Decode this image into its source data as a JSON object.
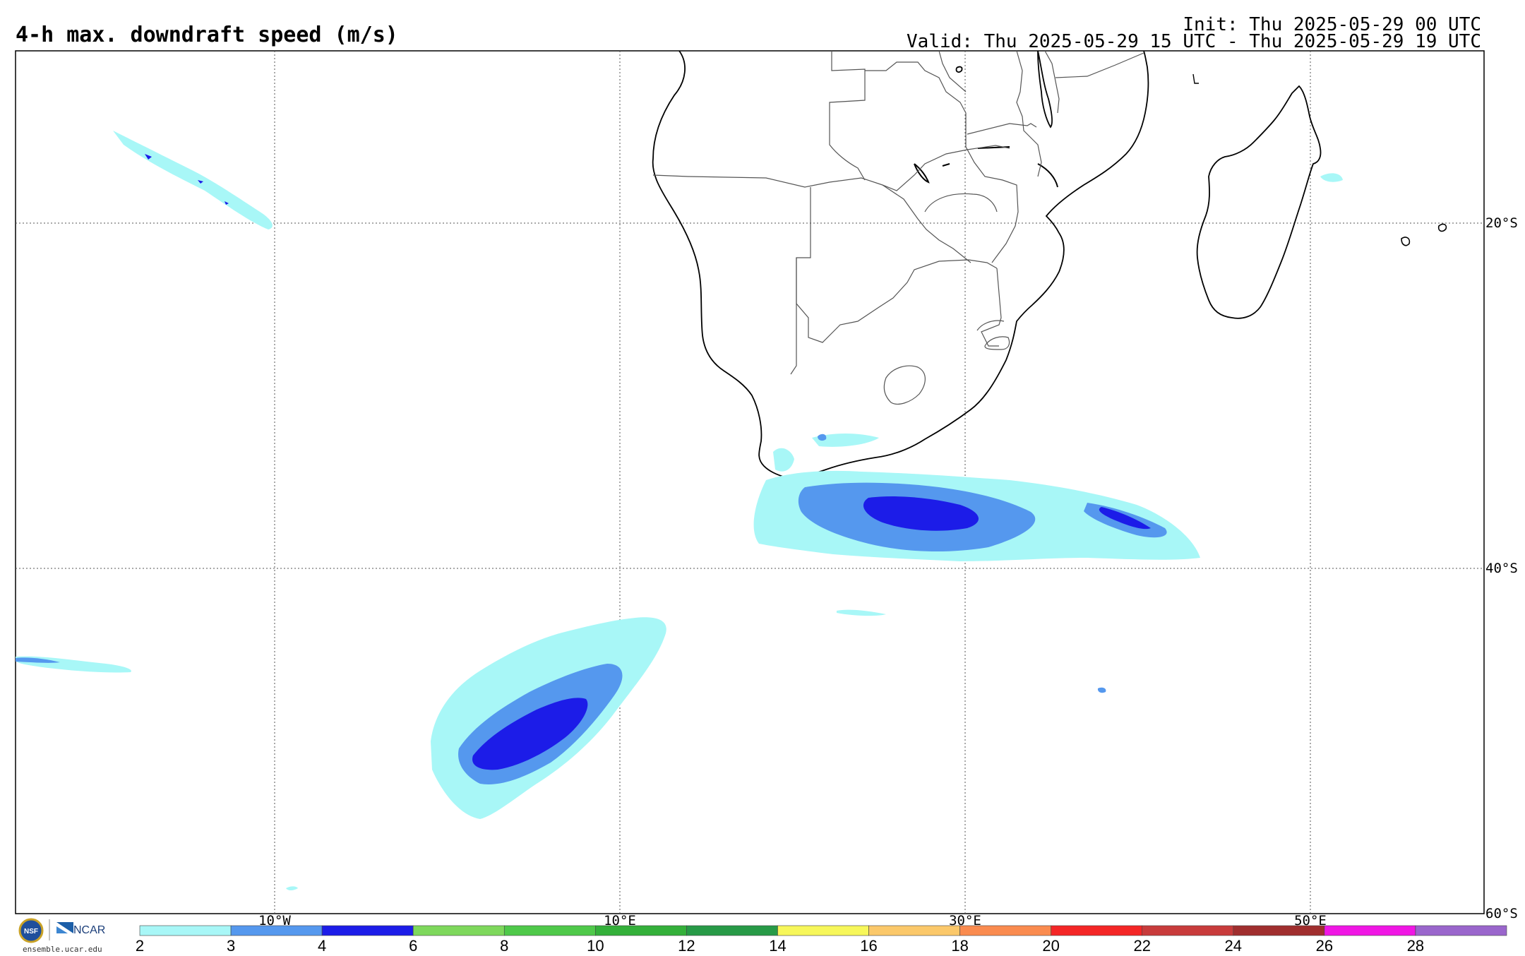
{
  "header": {
    "title": "4-h max. downdraft speed (m/s)",
    "init": "Init: Thu 2025-05-29 00 UTC",
    "valid": "Valid: Thu 2025-05-29 15 UTC - Thu 2025-05-29 19 UTC"
  },
  "map": {
    "longitude_labels": [
      "10°W",
      "10°E",
      "30°E",
      "50°E"
    ],
    "latitude_labels": [
      "20°S",
      "40°S",
      "60°S"
    ],
    "gridlines": "dotted"
  },
  "colorbar": {
    "ticks": [
      "2",
      "3",
      "4",
      "6",
      "8",
      "10",
      "12",
      "14",
      "16",
      "18",
      "20",
      "22",
      "24",
      "26",
      "28"
    ],
    "colors": [
      "#a8f7f7",
      "#5598ee",
      "#1c1ce8",
      "#7ed85c",
      "#4fc94a",
      "#34b03a",
      "#279a47",
      "#f7f75a",
      "#fbc86a",
      "#fa8b4f",
      "#f42626",
      "#c83b3b",
      "#a02e2e",
      "#f016e4",
      "#9a66cc"
    ]
  },
  "logos": {
    "nsf": "NSF",
    "ncar": "NCAR",
    "credit": "ensemble.ucar.edu"
  },
  "colors": {
    "light_cyan": "#a8f7f7",
    "medium_blue": "#5598ee",
    "dark_blue": "#1c1ce8"
  }
}
